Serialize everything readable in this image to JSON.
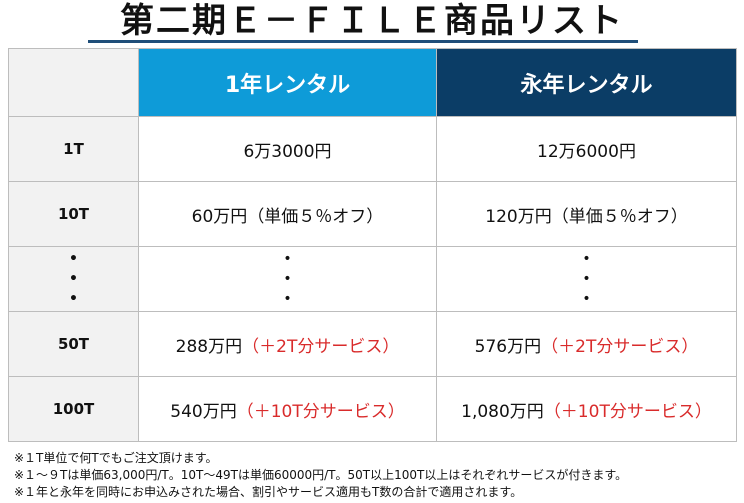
{
  "header": {
    "title": "第二期Ｅ－ＦＩＬＥ商品リスト"
  },
  "table": {
    "columns": [
      "1年レンタル",
      "永年レンタル"
    ],
    "rows": [
      {
        "label": "1T",
        "cells": [
          {
            "price": "6万3000円"
          },
          {
            "price": "12万6000円"
          }
        ]
      },
      {
        "label": "10T",
        "cells": [
          {
            "price": "60万円",
            "note": "（単価５％オフ）"
          },
          {
            "price": "120万円",
            "note": "（単価５％オフ）"
          }
        ]
      },
      {
        "label": [
          "•",
          "•",
          "•"
        ],
        "cells": [
          {
            "price": [
              "•",
              "•",
              "•"
            ]
          },
          {
            "price": [
              "•",
              "•",
              "•"
            ]
          }
        ]
      },
      {
        "label": "50T",
        "cells": [
          {
            "price": "288万円",
            "service": "（＋2T分サービス）"
          },
          {
            "price": "576万円",
            "service": "（＋2T分サービス）"
          }
        ]
      },
      {
        "label": "100T",
        "cells": [
          {
            "price": "540万円",
            "service": "（＋10T分サービス）"
          },
          {
            "price": "1,080万円",
            "service": "（＋10T分サービス）"
          }
        ]
      }
    ]
  },
  "notes": [
    "※１T単位で何Tでもご注文頂けます。",
    "※１～９Tは単価63,000円/T。10T～49Tは単価60000円/T。50T以上100T以上はそれぞれサービスが付きます。",
    "※１年と永年を同時にお申込みされた場合、割引やサービス適用もT数の合計で適用されます。"
  ]
}
